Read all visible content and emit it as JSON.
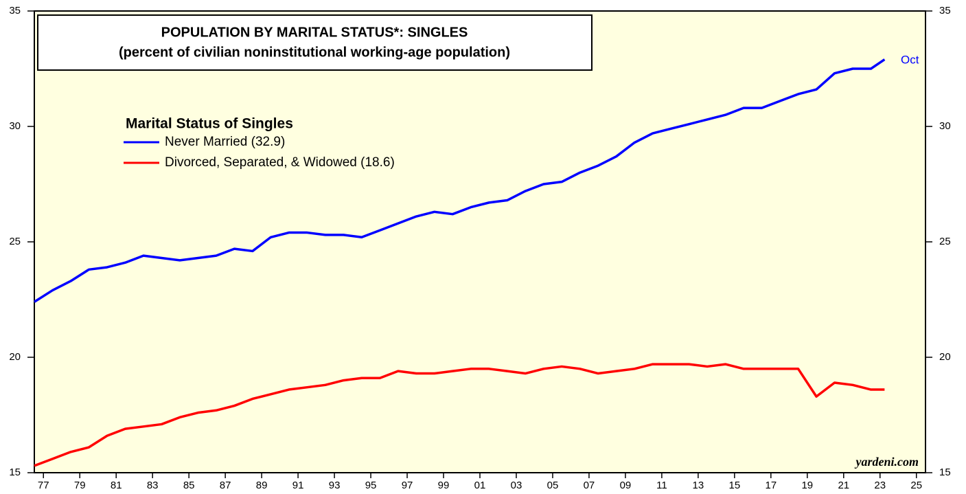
{
  "chart_data": {
    "type": "line",
    "title": "POPULATION BY MARITAL STATUS*: SINGLES",
    "subtitle": "(percent of civilian noninstitutional working-age population)",
    "legend_title": "Marital Status of Singles",
    "annotation": "Oct",
    "source": "yardeni.com",
    "x": [
      1977,
      1978,
      1979,
      1980,
      1981,
      1982,
      1983,
      1984,
      1985,
      1986,
      1987,
      1988,
      1989,
      1990,
      1991,
      1992,
      1993,
      1994,
      1995,
      1996,
      1997,
      1998,
      1999,
      2000,
      2001,
      2002,
      2003,
      2004,
      2005,
      2006,
      2007,
      2008,
      2009,
      2010,
      2011,
      2012,
      2013,
      2014,
      2015,
      2016,
      2017,
      2018,
      2019,
      2020,
      2021,
      2022,
      2023,
      2023.75
    ],
    "series": [
      {
        "name": "Never Married (32.9)",
        "color": "#0000ff",
        "values": [
          22.4,
          22.9,
          23.3,
          23.8,
          23.9,
          24.1,
          24.4,
          24.3,
          24.2,
          24.3,
          24.4,
          24.7,
          24.6,
          25.2,
          25.4,
          25.4,
          25.3,
          25.3,
          25.2,
          25.5,
          25.8,
          26.1,
          26.3,
          26.2,
          26.5,
          26.7,
          26.8,
          27.2,
          27.5,
          27.6,
          28.0,
          28.3,
          28.7,
          29.3,
          29.7,
          29.9,
          30.1,
          30.3,
          30.5,
          30.8,
          30.8,
          31.1,
          31.4,
          31.6,
          32.3,
          32.5,
          32.5,
          32.9
        ]
      },
      {
        "name": "Divorced, Separated, & Widowed (18.6)",
        "color": "#ff0000",
        "values": [
          15.3,
          15.6,
          15.9,
          16.1,
          16.6,
          16.9,
          17.0,
          17.1,
          17.4,
          17.6,
          17.7,
          17.9,
          18.2,
          18.4,
          18.6,
          18.7,
          18.8,
          19.0,
          19.1,
          19.1,
          19.4,
          19.3,
          19.3,
          19.4,
          19.5,
          19.5,
          19.4,
          19.3,
          19.5,
          19.6,
          19.5,
          19.3,
          19.4,
          19.5,
          19.7,
          19.7,
          19.7,
          19.6,
          19.7,
          19.5,
          19.5,
          19.5,
          19.5,
          18.3,
          18.9,
          18.8,
          18.6,
          18.6
        ]
      }
    ],
    "xlim": [
      1977,
      2026
    ],
    "xticks": [
      {
        "value": 1977.5,
        "label": "77"
      },
      {
        "value": 1979.5,
        "label": "79"
      },
      {
        "value": 1981.5,
        "label": "81"
      },
      {
        "value": 1983.5,
        "label": "83"
      },
      {
        "value": 1985.5,
        "label": "85"
      },
      {
        "value": 1987.5,
        "label": "87"
      },
      {
        "value": 1989.5,
        "label": "89"
      },
      {
        "value": 1991.5,
        "label": "91"
      },
      {
        "value": 1993.5,
        "label": "93"
      },
      {
        "value": 1995.5,
        "label": "95"
      },
      {
        "value": 1997.5,
        "label": "97"
      },
      {
        "value": 1999.5,
        "label": "99"
      },
      {
        "value": 2001.5,
        "label": "01"
      },
      {
        "value": 2003.5,
        "label": "03"
      },
      {
        "value": 2005.5,
        "label": "05"
      },
      {
        "value": 2007.5,
        "label": "07"
      },
      {
        "value": 2009.5,
        "label": "09"
      },
      {
        "value": 2011.5,
        "label": "11"
      },
      {
        "value": 2013.5,
        "label": "13"
      },
      {
        "value": 2015.5,
        "label": "15"
      },
      {
        "value": 2017.5,
        "label": "17"
      },
      {
        "value": 2019.5,
        "label": "19"
      },
      {
        "value": 2021.5,
        "label": "21"
      },
      {
        "value": 2023.5,
        "label": "23"
      },
      {
        "value": 2025.5,
        "label": "25"
      }
    ],
    "ylim": [
      15,
      35
    ],
    "yticks": [
      15,
      20,
      25,
      30,
      35
    ],
    "background": "#ffffe0"
  }
}
